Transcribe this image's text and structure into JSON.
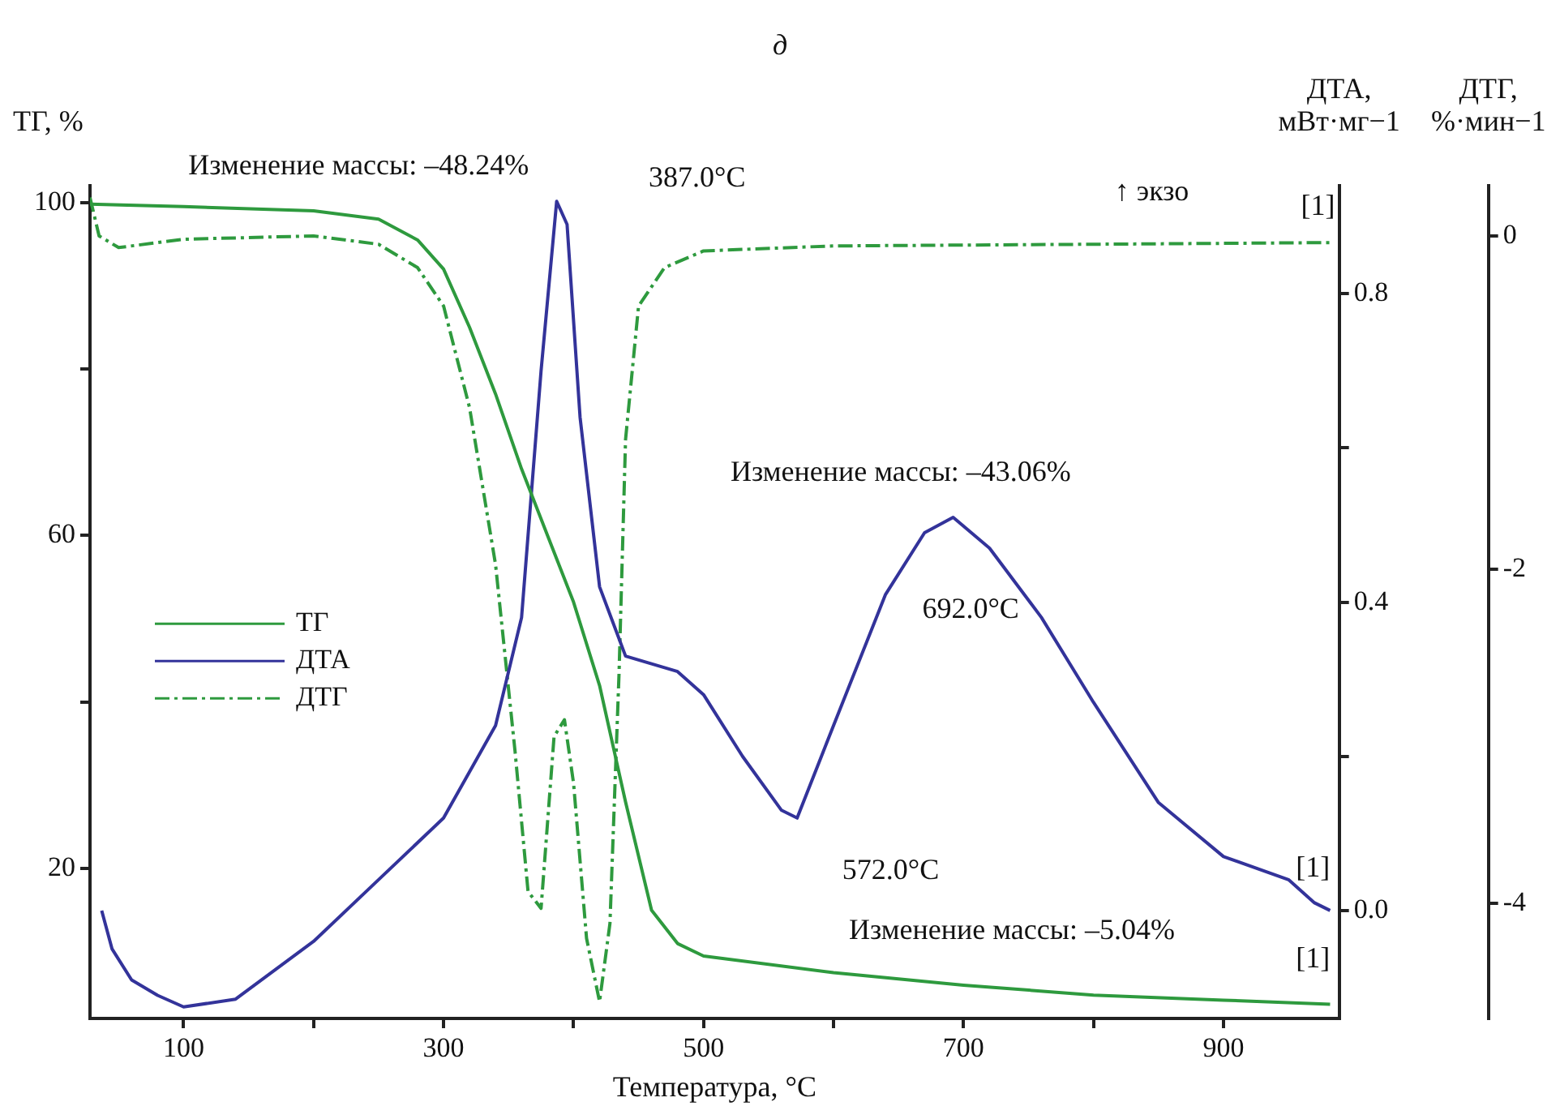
{
  "chart_data": {
    "type": "line",
    "title": "д",
    "xlabel": "Температура, °С",
    "ylabel": "ТГ, %",
    "y2label": "ДТА, мВт·мг−1",
    "y3label": "ДТГ, %·мин−1",
    "xlim": [
      28,
      989
    ],
    "xticks": [
      100,
      {
        "value": 200,
        "label": null
      },
      300,
      {
        "value": 400,
        "label": null
      },
      500,
      {
        "value": 600,
        "label": null
      },
      700,
      {
        "value": 800,
        "label": null
      },
      900
    ],
    "ylim": [
      2,
      102
    ],
    "yticks": [
      {
        "value": 20,
        "label": "20"
      },
      {
        "value": 40,
        "label": null
      },
      60,
      {
        "value": 80,
        "label": null
      },
      100
    ],
    "y2lim": [
      -0.14,
      0.94
    ],
    "y2ticks": [
      {
        "value": 0,
        "label": "0.0"
      },
      {
        "value": 0.2,
        "label": null
      },
      0.4,
      {
        "value": 0.6,
        "label": null
      },
      0.8
    ],
    "y3lim": [
      -4.69,
      0.3
    ],
    "y3ticks": [
      -4,
      -2,
      0
    ],
    "grid": false,
    "legend": "left",
    "marker": "none",
    "series": [
      {
        "name": "ТГ",
        "color": "#2e9a3e",
        "line_style": "solid",
        "x": [
          28,
          100,
          200,
          250,
          280,
          300,
          320,
          340,
          360,
          380,
          400,
          420,
          440,
          460,
          480,
          500,
          600,
          700,
          800,
          900,
          982
        ],
        "values": [
          99.8,
          99.5,
          99,
          98,
          95.5,
          92,
          85,
          77,
          68,
          60,
          52,
          42,
          28,
          15,
          11,
          9.5,
          7.5,
          6,
          4.8,
          4.2,
          3.7
        ]
      },
      {
        "name": "ДТА",
        "color": "#33339a",
        "line_style": "solid",
        "axis": "y2",
        "x": [
          37,
          45,
          60,
          80,
          100,
          140,
          200,
          250,
          300,
          340,
          360,
          375,
          387,
          395,
          405,
          420,
          440,
          460,
          480,
          500,
          530,
          560,
          572,
          600,
          640,
          670,
          692,
          720,
          760,
          800,
          850,
          900,
          950,
          970,
          982
        ],
        "values": [
          0.0,
          -0.05,
          -0.09,
          -0.11,
          -0.125,
          -0.115,
          -0.04,
          0.04,
          0.12,
          0.24,
          0.38,
          0.7,
          0.92,
          0.89,
          0.64,
          0.42,
          0.33,
          0.32,
          0.31,
          0.28,
          0.2,
          0.13,
          0.12,
          0.24,
          0.41,
          0.49,
          0.51,
          0.47,
          0.38,
          0.27,
          0.14,
          0.07,
          0.04,
          0.01,
          0.0
        ]
      },
      {
        "name": "ДТГ",
        "color": "#2e9a3e",
        "line_style": "dashed",
        "axis": "y3",
        "x": [
          28,
          35,
          50,
          100,
          200,
          250,
          280,
          300,
          320,
          340,
          355,
          365,
          375,
          385,
          393,
          400,
          410,
          420,
          428,
          435,
          440,
          450,
          470,
          500,
          600,
          800,
          982
        ],
        "values": [
          0.23,
          0,
          -0.07,
          -0.02,
          0,
          -0.05,
          -0.19,
          -0.42,
          -1.03,
          -1.97,
          -3.09,
          -3.93,
          -4.03,
          -3.0,
          -2.9,
          -3.28,
          -4.21,
          -4.59,
          -4.12,
          -2.62,
          -1.22,
          -0.42,
          -0.19,
          -0.09,
          -0.06,
          -0.05,
          -0.04
        ]
      }
    ],
    "annotations": [
      "Изменение массы: –48.24%",
      "387.0°C",
      "↑ экзо",
      "Изменение массы: –43.06%",
      "692.0°C",
      "572.0°C",
      "Изменение массы: –5.04%",
      "[1]",
      "[1]",
      "[1]"
    ]
  }
}
